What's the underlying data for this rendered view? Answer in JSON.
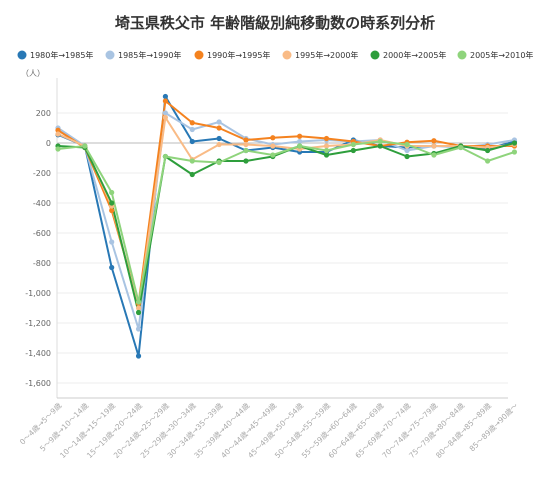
{
  "chart_data": {
    "type": "line",
    "title": "埼玉県秩父市 年齢階級別純移動数の時系列分析",
    "unit": "（人）",
    "xlabel": "",
    "ylabel": "",
    "ylim": [
      -1700,
      400
    ],
    "yticks": [
      200,
      0,
      -200,
      -400,
      -600,
      -800,
      -1000,
      -1200,
      -1400,
      -1600
    ],
    "ytick_labels": [
      "200",
      "0",
      "-200",
      "-400",
      "-600",
      "-800",
      "-1,000",
      "-1,200",
      "-1,400",
      "-1,600"
    ],
    "grid": true,
    "legend_position": "top",
    "categories": [
      "0～4歳→5～9歳",
      "5～9歳→10～14歳",
      "10～14歳→15～19歳",
      "15～19歳→20～24歳",
      "20～24歳→25～29歳",
      "25～29歳→30～34歳",
      "30～34歳→35～39歳",
      "35～39歳→40～44歳",
      "40～44歳→45～49歳",
      "45～49歳→50～54歳",
      "50～54歳→55～59歳",
      "55～59歳→60～64歳",
      "60～64歳→65～69歳",
      "65～69歳→70～74歳",
      "70～74歳→75～79歳",
      "75～79歳→80～84歳",
      "80～84歳→85～89歳",
      "85～89歳→90歳～"
    ],
    "series": [
      {
        "name": "1980年→1985年",
        "color": "#2878b5",
        "values": [
          55,
          -20,
          -830,
          -1420,
          310,
          10,
          30,
          -50,
          -30,
          -60,
          -60,
          20,
          -20,
          -30,
          -20,
          -20,
          -40,
          10
        ]
      },
      {
        "name": "1985年→1990年",
        "color": "#a9c4e2",
        "values": [
          100,
          -20,
          -660,
          -1240,
          200,
          90,
          140,
          30,
          -10,
          10,
          20,
          10,
          20,
          -50,
          -20,
          -30,
          -10,
          20
        ]
      },
      {
        "name": "1990年→1995年",
        "color": "#f4821f",
        "values": [
          85,
          -30,
          -450,
          -1070,
          280,
          135,
          100,
          20,
          35,
          45,
          30,
          10,
          -20,
          5,
          15,
          -20,
          -20,
          -20
        ]
      },
      {
        "name": "1995年→2000年",
        "color": "#f9bb86",
        "values": [
          60,
          -20,
          -420,
          -1100,
          170,
          -110,
          -10,
          -10,
          -20,
          -40,
          -20,
          -10,
          20,
          -20,
          -20,
          -20,
          -30,
          -10
        ]
      },
      {
        "name": "2000年→2005年",
        "color": "#2e9e3c",
        "values": [
          -20,
          -30,
          -400,
          -1130,
          -90,
          -210,
          -120,
          -120,
          -90,
          -20,
          -80,
          -50,
          -20,
          -90,
          -70,
          -20,
          -50,
          0
        ]
      },
      {
        "name": "2005年→2010年",
        "color": "#8fd47c",
        "values": [
          -40,
          -20,
          -330,
          -1060,
          -90,
          -120,
          -130,
          -50,
          -80,
          -20,
          -50,
          -10,
          10,
          -10,
          -80,
          -30,
          -120,
          -60
        ]
      }
    ]
  }
}
